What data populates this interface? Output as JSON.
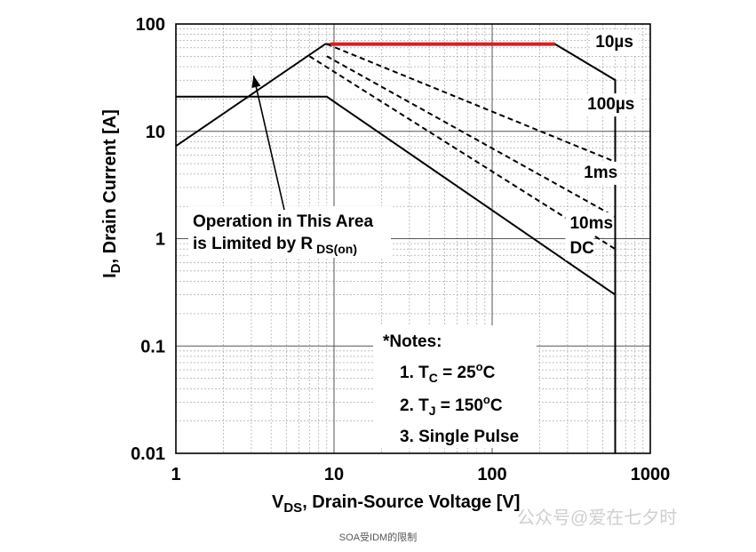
{
  "chart_data": {
    "type": "line",
    "title": "",
    "x_scale": "log",
    "y_scale": "log",
    "xlim": [
      1,
      1000
    ],
    "ylim": [
      0.01,
      100
    ],
    "xlabel_main": "V",
    "xlabel_sub": "DS",
    "xlabel_rest": ", Drain-Source Voltage [V]",
    "ylabel_main": "I",
    "ylabel_sub": "D",
    "ylabel_rest": ", Drain Current [A]",
    "x_ticks": [
      {
        "value": 1,
        "label": "1"
      },
      {
        "value": 10,
        "label": "10"
      },
      {
        "value": 100,
        "label": "100"
      },
      {
        "value": 1000,
        "label": "1000"
      }
    ],
    "y_ticks": [
      {
        "value": 100,
        "label": "100"
      },
      {
        "value": 10,
        "label": "10"
      },
      {
        "value": 1,
        "label": "1"
      },
      {
        "value": 0.1,
        "label": "0.1"
      },
      {
        "value": 0.01,
        "label": "0.01"
      }
    ],
    "grid": true,
    "series": [
      {
        "name": "10µs",
        "style": "solid",
        "color": "#000000",
        "points": [
          [
            1,
            7.3
          ],
          [
            8.8,
            65
          ],
          [
            250,
            65
          ],
          [
            600,
            30
          ],
          [
            600,
            0.01
          ]
        ]
      },
      {
        "name": "100µs",
        "style": "dashed",
        "color": "#000000",
        "points": [
          [
            9,
            65
          ],
          [
            600,
            5.2
          ]
        ]
      },
      {
        "name": "1ms",
        "style": "dashed",
        "color": "#000000",
        "points": [
          [
            9,
            50
          ],
          [
            600,
            1.6
          ]
        ]
      },
      {
        "name": "10ms",
        "style": "dashed",
        "color": "#000000",
        "points": [
          [
            7,
            50
          ],
          [
            600,
            0.8
          ]
        ]
      },
      {
        "name": "DC",
        "style": "solid",
        "color": "#000000",
        "points": [
          [
            1,
            21
          ],
          [
            9,
            21
          ],
          [
            600,
            0.3
          ]
        ]
      },
      {
        "name": "",
        "style": "solid",
        "color": "#d81e1e",
        "points": [
          [
            9.5,
            65
          ],
          [
            250,
            65
          ]
        ]
      }
    ],
    "curve_labels": [
      {
        "text": "10µs",
        "x": 450,
        "y": 61
      },
      {
        "text": "100µs",
        "x": 400,
        "y": 16
      },
      {
        "text": "1ms",
        "x": 380,
        "y": 3.7
      },
      {
        "text": "10ms",
        "x": 310,
        "y": 1.25
      },
      {
        "text": "DC",
        "x": 310,
        "y": 0.73
      }
    ],
    "annotations": {
      "rds_line1": "Operation in This Area",
      "rds_line2_main": "is Limited by R",
      "rds_line2_sub": "DS(on)",
      "arrow_to": {
        "x": 3.1,
        "y": 33
      },
      "notes_title": "*Notes:",
      "note1_prefix": "1. T",
      "note1_sub": "C",
      "note1_value": " = 25",
      "note1_sup": "o",
      "note1_unit": "C",
      "note2_prefix": "2. T",
      "note2_sub": "J",
      "note2_value": " = 150",
      "note2_sup": "o",
      "note2_unit": "C",
      "note3": "3. Single Pulse"
    }
  },
  "footer": {
    "caption": "SOA受IDM的限制",
    "watermark": "公众号@爱在七夕时"
  }
}
